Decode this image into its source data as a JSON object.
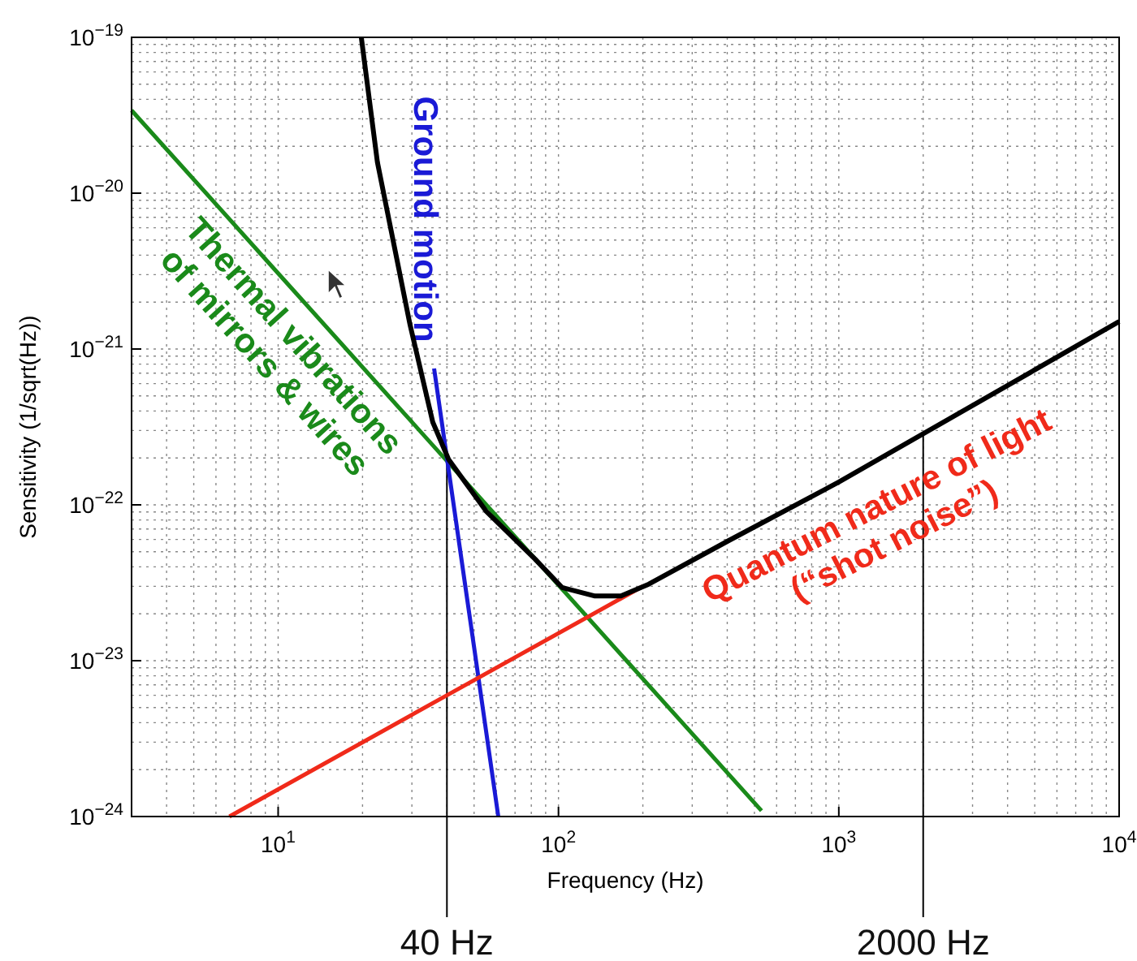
{
  "chart_data": {
    "type": "line",
    "xlabel": "Frequency (Hz)",
    "ylabel": "Sensitivity (1/sqrt(Hz))",
    "log": "xy",
    "grid": true,
    "line_style": "solid",
    "marker": "none",
    "xlim": [
      3,
      10000
    ],
    "ylim": [
      1e-24,
      1e-19
    ],
    "xticks": [
      {
        "value": 10,
        "label": "10$^{1}$"
      },
      {
        "value": 100,
        "label": "10$^{2}$"
      },
      {
        "value": 1000,
        "label": "10$^{3}$"
      },
      {
        "value": 10000,
        "label": "10$^{4}$"
      }
    ],
    "yticks": [
      {
        "value": 1e-24,
        "label": "10$^{−24}$"
      },
      {
        "value": 1e-23,
        "label": "10$^{−23}$"
      },
      {
        "value": 1e-22,
        "label": "10$^{−22}$"
      },
      {
        "value": 1e-21,
        "label": "10$^{−21}$"
      },
      {
        "value": 1e-20,
        "label": "10$^{−20}$"
      },
      {
        "value": 1e-19,
        "label": "10$^{−19}$"
      }
    ],
    "series": [
      {
        "name": "Thermal vibrations\nof mirrors & wires",
        "color": "#1a8a1a",
        "x": [
          3,
          10,
          100,
          530
        ],
        "values": [
          3.4e-20,
          3.06e-21,
          3.06e-23,
          1.09e-24
        ]
      },
      {
        "name": "Ground motion",
        "color": "#1a1ad6",
        "x": [
          36,
          40,
          50,
          61
        ],
        "values": [
          7.5e-22,
          2e-22,
          1.22e-23,
          1e-24
        ]
      },
      {
        "name": "Quantum nature of light\n(“shot noise”)",
        "color": "#f02a1a",
        "x": [
          6.7,
          40,
          200
        ],
        "values": [
          1e-24,
          6e-24,
          3e-23
        ]
      },
      {
        "color": "#000000",
        "x": [
          19.8,
          22.6,
          29.5,
          35.6,
          40.6,
          55.2,
          82.4,
          103,
          135,
          167,
          210,
          405,
          1000,
          10000
        ],
        "values": [
          1e-19,
          1.58e-20,
          1.45e-21,
          3.4e-22,
          1.95e-22,
          9.1e-23,
          4.5e-23,
          2.95e-23,
          2.6e-23,
          2.6e-23,
          3.1e-23,
          5.9e-23,
          1.4e-22,
          1.5e-21
        ]
      }
    ],
    "ref_lines": [
      {
        "axis": "x",
        "value": 40,
        "label": "40 Hz",
        "color": "#000000"
      },
      {
        "axis": "x",
        "value": 2000,
        "label": "2000 Hz",
        "color": "#000000"
      }
    ]
  }
}
